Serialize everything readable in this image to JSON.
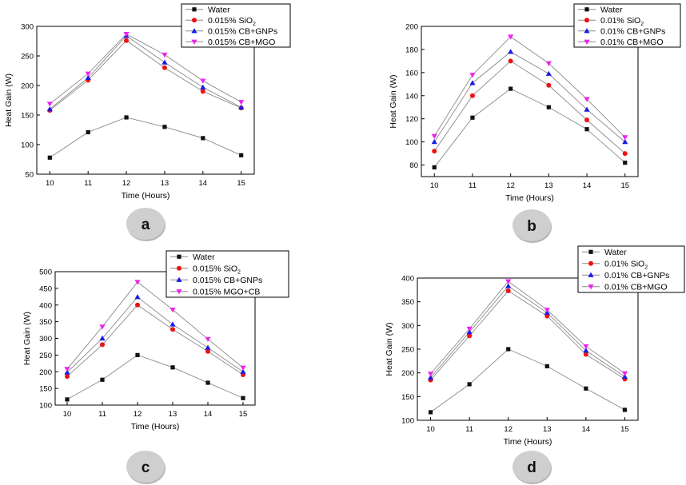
{
  "colors": {
    "water": "#111111",
    "sio2": "#ee1111",
    "cb_gnps": "#1a1ae6",
    "cb_mgo": "#ee22ee",
    "badge": "#cfcfcf",
    "text": "#000000"
  },
  "chart_data": [
    {
      "type": "line",
      "panel": "a",
      "title": "",
      "xlabel": "Time (Hours)",
      "ylabel": "Heat Gain (W)",
      "x": [
        10,
        11,
        12,
        13,
        14,
        15
      ],
      "xlim": [
        10,
        15
      ],
      "ylim": [
        50,
        300
      ],
      "yticks": [
        50,
        100,
        150,
        200,
        250,
        300
      ],
      "legend_position": "top-right",
      "grid": false,
      "series": [
        {
          "name": "Water",
          "values": [
            78,
            121,
            146,
            130,
            111,
            82
          ]
        },
        {
          "name": "0.015% SiO2",
          "values": [
            158,
            209,
            276,
            230,
            190,
            162
          ]
        },
        {
          "name": "0.015% CB+GNPs",
          "values": [
            160,
            213,
            284,
            239,
            197,
            163
          ]
        },
        {
          "name": "0.015% CB+MGO",
          "values": [
            169,
            220,
            287,
            252,
            208,
            172
          ]
        }
      ]
    },
    {
      "type": "line",
      "panel": "b",
      "title": "",
      "xlabel": "Time (Hours)",
      "ylabel": "Heat Gain (W)",
      "x": [
        10,
        11,
        12,
        13,
        14,
        15
      ],
      "xlim": [
        10,
        15
      ],
      "ylim": [
        70,
        200
      ],
      "yticks": [
        80,
        100,
        120,
        140,
        160,
        180,
        200
      ],
      "legend_position": "top-right",
      "grid": false,
      "series": [
        {
          "name": "Water",
          "values": [
            78,
            121,
            146,
            130,
            111,
            82
          ]
        },
        {
          "name": "0.01% SiO2",
          "values": [
            92,
            140,
            170,
            149,
            119,
            90
          ]
        },
        {
          "name": "0.01% CB+GNPs",
          "values": [
            100,
            151,
            178,
            159,
            128,
            100
          ]
        },
        {
          "name": "0.01% CB+MGO",
          "values": [
            105,
            158,
            191,
            168,
            137,
            104
          ]
        }
      ]
    },
    {
      "type": "line",
      "panel": "c",
      "title": "",
      "xlabel": "Time (Hours)",
      "ylabel": "Heat Gain (W)",
      "x": [
        10,
        11,
        12,
        13,
        14,
        15
      ],
      "xlim": [
        10,
        15
      ],
      "ylim": [
        100,
        500
      ],
      "yticks": [
        100,
        150,
        200,
        250,
        300,
        350,
        400,
        450,
        500
      ],
      "legend_position": "top-right",
      "grid": false,
      "series": [
        {
          "name": "Water",
          "values": [
            117,
            176,
            250,
            213,
            167,
            121
          ]
        },
        {
          "name": "0.015% SiO2",
          "values": [
            186,
            281,
            400,
            327,
            261,
            191
          ]
        },
        {
          "name": "0.015% CB+GNPs",
          "values": [
            198,
            300,
            424,
            342,
            272,
            200
          ]
        },
        {
          "name": "0.015% MGO+CB",
          "values": [
            208,
            335,
            469,
            386,
            298,
            212
          ]
        }
      ]
    },
    {
      "type": "line",
      "panel": "d",
      "title": "",
      "xlabel": "Time (Hours)",
      "ylabel": "Heat Gain (W)",
      "x": [
        10,
        11,
        12,
        13,
        14,
        15
      ],
      "xlim": [
        10,
        15
      ],
      "ylim": [
        100,
        400
      ],
      "yticks": [
        100,
        150,
        200,
        250,
        300,
        350,
        400
      ],
      "legend_position": "top-right",
      "grid": false,
      "series": [
        {
          "name": "Water",
          "values": [
            117,
            176,
            250,
            214,
            167,
            122
          ]
        },
        {
          "name": "0.01% SiO2",
          "values": [
            185,
            278,
            373,
            320,
            239,
            187
          ]
        },
        {
          "name": "0.01% CB+GNPs",
          "values": [
            190,
            286,
            383,
            327,
            247,
            192
          ]
        },
        {
          "name": "0.01% CB+MGO",
          "values": [
            198,
            293,
            393,
            333,
            256,
            199
          ]
        }
      ]
    }
  ]
}
